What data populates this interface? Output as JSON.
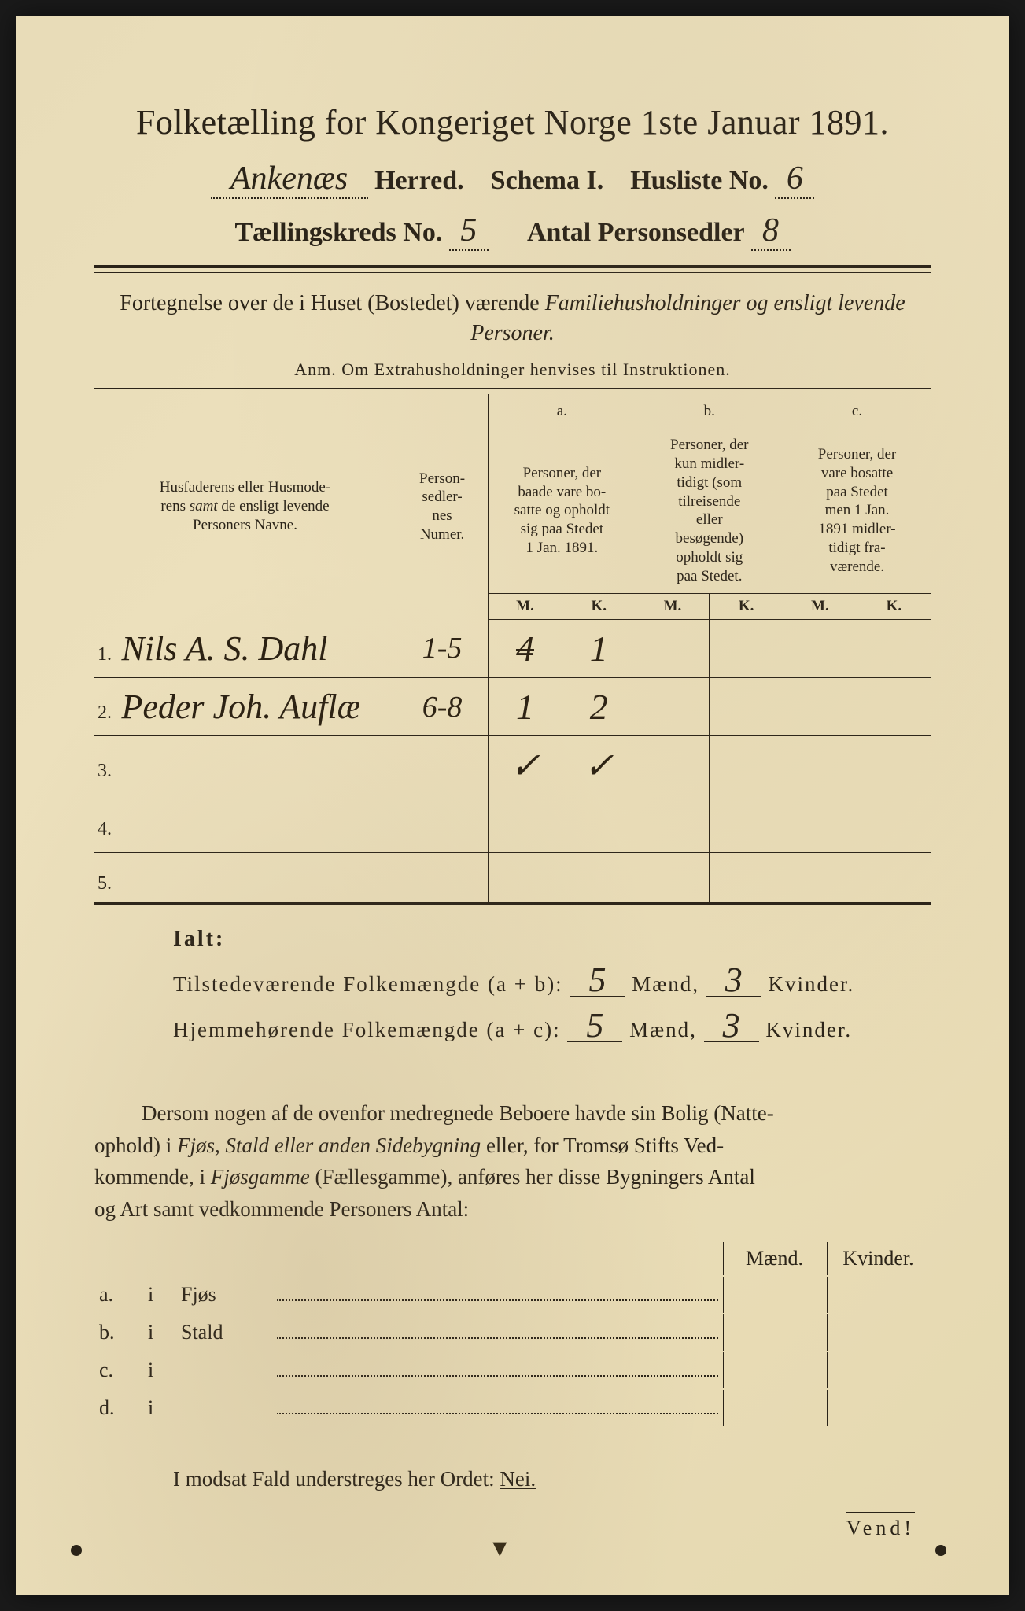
{
  "colors": {
    "paper": "#e8dcb8",
    "ink": "#2a2318",
    "handwriting": "#2a2012"
  },
  "title": "Folketælling for Kongeriget Norge 1ste Januar 1891.",
  "header": {
    "herred_hw": "Ankenæs",
    "herred_label": "Herred.",
    "schema": "Schema I.",
    "husliste_label": "Husliste No.",
    "husliste_hw": "6",
    "kreds_label": "Tællingskreds No.",
    "kreds_hw": "5",
    "antal_label": "Antal Personsedler",
    "antal_hw": "8"
  },
  "description": {
    "line": "Fortegnelse over de i Huset (Bostedet) værende Familiehusholdninger og ensligt levende Personer.",
    "anm": "Anm. Om Extrahusholdninger henvises til Instruktionen."
  },
  "table": {
    "headers": {
      "name": "Husfaderens eller Husmoderens samt de ensligt levende Personers Navne.",
      "numer": "Person-sedler-nes Numer.",
      "a_label": "a.",
      "a_text": "Personer, der baade vare bosatte og opholdt sig paa Stedet 1 Jan. 1891.",
      "b_label": "b.",
      "b_text": "Personer, der kun midlertidigt (som tilreisende eller besøgende) opholdt sig paa Stedet.",
      "c_label": "c.",
      "c_text": "Personer, der vare bosatte paa Stedet men 1 Jan. 1891 midlertidigt fraværende.",
      "m": "M.",
      "k": "K."
    },
    "rows": [
      {
        "num": "1.",
        "name_hw": "Nils A. S. Dahl",
        "numer_hw": "1-5",
        "a_m": "4",
        "a_m_struck": true,
        "a_k": "1",
        "b_m": "",
        "b_k": "",
        "c_m": "",
        "c_k": ""
      },
      {
        "num": "2.",
        "name_hw": "Peder Joh. Auflæ",
        "numer_hw": "6-8",
        "a_m": "1",
        "a_k": "2",
        "b_m": "",
        "b_k": "",
        "c_m": "",
        "c_k": ""
      },
      {
        "num": "3.",
        "name_hw": "",
        "numer_hw": "",
        "a_m": "✓",
        "a_k": "✓",
        "b_m": "",
        "b_k": "",
        "c_m": "",
        "c_k": ""
      },
      {
        "num": "4.",
        "name_hw": "",
        "numer_hw": "",
        "a_m": "",
        "a_k": "",
        "b_m": "",
        "b_k": "",
        "c_m": "",
        "c_k": ""
      },
      {
        "num": "5.",
        "name_hw": "",
        "numer_hw": "",
        "a_m": "",
        "a_k": "",
        "b_m": "",
        "b_k": "",
        "c_m": "",
        "c_k": ""
      }
    ]
  },
  "totals": {
    "ialt": "Ialt:",
    "line1_label": "Tilstedeværende Folkemængde (a + b):",
    "line2_label": "Hjemmehørende Folkemængde (a + c):",
    "maend": "Mænd,",
    "kvinder": "Kvinder.",
    "l1_m": "5",
    "l1_k": "3",
    "l2_m": "5",
    "l2_k": "3"
  },
  "paragraph": "Dersom nogen af de ovenfor medregnede Beboere havde sin Bolig (Natteophold) i Fjøs, Stald eller anden Sidebygning eller, for Tromsø Stifts Vedkommende, i Fjøsgamme (Fællesgamme), anføres her disse Bygningers Antal og Art samt vedkommende Personers Antal:",
  "side": {
    "maend": "Mænd.",
    "kvinder": "Kvinder.",
    "rows": [
      {
        "letter": "a.",
        "i": "i",
        "label": "Fjøs"
      },
      {
        "letter": "b.",
        "i": "i",
        "label": "Stald"
      },
      {
        "letter": "c.",
        "i": "i",
        "label": ""
      },
      {
        "letter": "d.",
        "i": "i",
        "label": ""
      }
    ]
  },
  "nei": {
    "text": "I modsat Fald understreges her Ordet:",
    "word": "Nei."
  },
  "vend": "Vend!"
}
